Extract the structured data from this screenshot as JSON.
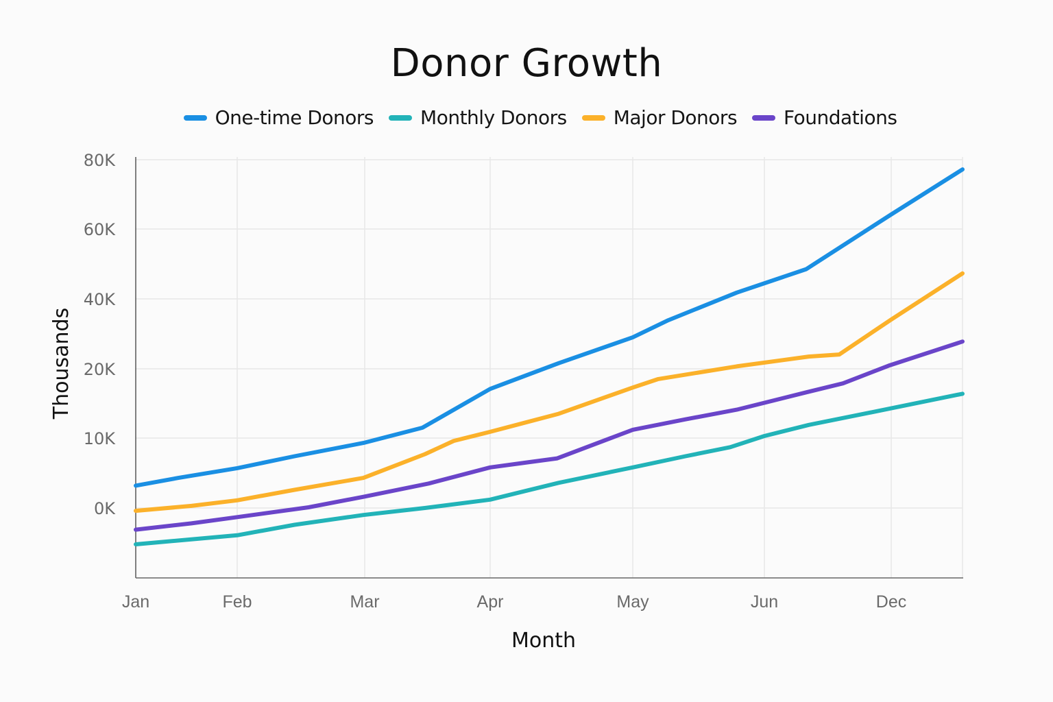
{
  "chart_data": {
    "type": "line",
    "title": "Donor Growth",
    "xlabel": "Month",
    "ylabel": "Thousands",
    "categories": [
      "Jan",
      "Feb",
      "Mar",
      "Apr",
      "May",
      "Jun",
      "Dec"
    ],
    "y_ticks": [
      {
        "value": 0,
        "label": "0K"
      },
      {
        "value": 10,
        "label": "10K"
      },
      {
        "value": 20,
        "label": "20K"
      },
      {
        "value": 40,
        "label": "40K"
      },
      {
        "value": 60,
        "label": "60K"
      },
      {
        "value": 80,
        "label": "80K"
      }
    ],
    "y_unit": "thousands",
    "ylim": [
      -10,
      80
    ],
    "x_range_index": [
      0,
      6.56
    ],
    "grid": true,
    "legend_position": "top-center",
    "series": [
      {
        "name": "One-time Donors",
        "color": "#1a8fe3",
        "x": [
          0,
          0.42,
          1,
          1.45,
          1.99,
          2.46,
          3,
          3.48,
          4,
          4.27,
          4.79,
          5.33,
          6,
          6.56
        ],
        "values": [
          3.2,
          4.3,
          5.7,
          7.4,
          9.3,
          11.5,
          17.1,
          21.6,
          29.0,
          33.9,
          41.8,
          48.5,
          64.2,
          77.2
        ]
      },
      {
        "name": "Monthly Donors",
        "color": "#22b3b8",
        "x": [
          0,
          1,
          1.45,
          1.99,
          2.48,
          3,
          3.48,
          4,
          4.4,
          4.74,
          5,
          5.35,
          6,
          6.56
        ],
        "values": [
          -5.2,
          -3.9,
          -2.4,
          -1.0,
          0.0,
          1.2,
          3.6,
          5.8,
          7.4,
          8.7,
          10.3,
          11.9,
          14.3,
          16.4
        ]
      },
      {
        "name": "Major Donors",
        "color": "#fbb12a",
        "x": [
          0,
          0.55,
          1,
          1.45,
          1.99,
          2.48,
          2.71,
          3,
          3.48,
          4,
          4.19,
          4.79,
          5.35,
          5.59,
          6,
          6.56
        ],
        "values": [
          -0.4,
          0.3,
          1.1,
          2.6,
          4.3,
          7.7,
          9.6,
          10.9,
          13.5,
          17.3,
          18.5,
          20.7,
          23.5,
          24.1,
          34.1,
          47.3
        ]
      },
      {
        "name": "Foundations",
        "color": "#6a45c9",
        "x": [
          0,
          0.55,
          1,
          1.56,
          1.99,
          2.51,
          3,
          3.47,
          4,
          4.4,
          4.79,
          5.33,
          5.62,
          5.98,
          6.56
        ],
        "values": [
          -3.1,
          -2.2,
          -1.3,
          0.1,
          1.6,
          3.5,
          5.8,
          7.1,
          11.2,
          12.7,
          14.1,
          16.6,
          17.9,
          20.9,
          27.8
        ]
      }
    ]
  }
}
